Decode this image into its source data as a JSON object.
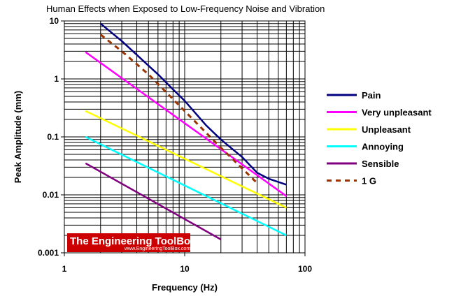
{
  "chart_data": {
    "type": "line",
    "title": "Human Effects when Exposed to Low-Frequency Noise and Vibration",
    "xlabel": "Frequency (Hz)",
    "ylabel": "Peak Amplitude (mm)",
    "xscale": "log",
    "yscale": "log",
    "xlim": [
      1,
      100
    ],
    "ylim": [
      0.001,
      10
    ],
    "xticks": [
      "1",
      "10",
      "100"
    ],
    "yticks": [
      "0.001",
      "0.01",
      "0.1",
      "1",
      "10"
    ],
    "grid": "on",
    "legend_position": "right",
    "series": [
      {
        "name": "Pain",
        "color": "#000080",
        "dash": "solid",
        "x": [
          2,
          3,
          4,
          5,
          6,
          8,
          10,
          15,
          20,
          30,
          40,
          50,
          70
        ],
        "y": [
          9,
          4.5,
          2.6,
          1.7,
          1.2,
          0.66,
          0.42,
          0.16,
          0.09,
          0.045,
          0.024,
          0.019,
          0.015
        ]
      },
      {
        "name": "Very unpleasant",
        "color": "#ff00ff",
        "dash": "solid",
        "x": [
          1.5,
          70
        ],
        "y": [
          2.9,
          0.0095
        ]
      },
      {
        "name": "Unpleasant",
        "color": "#ffff00",
        "dash": "solid",
        "x": [
          1.5,
          70
        ],
        "y": [
          0.28,
          0.006
        ]
      },
      {
        "name": "Annoying",
        "color": "#00ffff",
        "dash": "solid",
        "x": [
          1.5,
          70
        ],
        "y": [
          0.1,
          0.002
        ]
      },
      {
        "name": "Sensible",
        "color": "#800080",
        "dash": "solid",
        "x": [
          1.5,
          20
        ],
        "y": [
          0.035,
          0.0017
        ]
      },
      {
        "name": "1 G",
        "color": "#993300",
        "dash": "dashed",
        "x": [
          2,
          3,
          5,
          10,
          20,
          40
        ],
        "y": [
          5.8,
          3.0,
          1.2,
          0.28,
          0.065,
          0.016
        ]
      }
    ]
  },
  "watermark": {
    "text": "The Engineering ToolBox",
    "url": "www.EngineeringToolBox.com",
    "color": "#cc0000"
  }
}
